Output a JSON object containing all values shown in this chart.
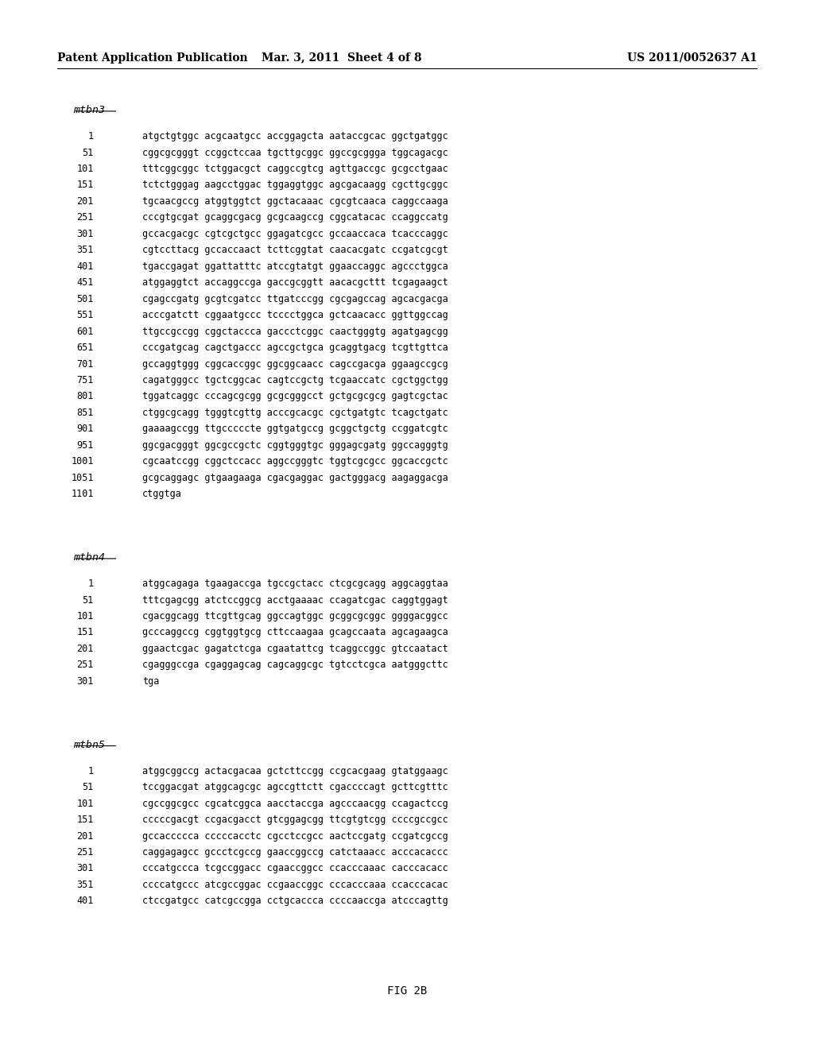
{
  "header_left": "Patent Application Publication",
  "header_mid": "Mar. 3, 2011  Sheet 4 of 8",
  "header_right": "US 2011/0052637 A1",
  "figure_label": "FIG 2B",
  "sections": [
    {
      "label": "mtbn3",
      "lines": [
        [
          "1",
          "atgctgtggc acgcaatgcc accggagcta aataccgcac ggctgatggc"
        ],
        [
          "51",
          "cggcgcgggt ccggctccaa tgcttgcggc ggccgcggga tggcagacgc"
        ],
        [
          "101",
          "tttcggcggc tctggacgct caggccgtcg agttgaccgc gcgcctgaac"
        ],
        [
          "151",
          "tctctgggag aagcctggac tggaggtggc agcgacaagg cgcttgcggc"
        ],
        [
          "201",
          "tgcaacgccg atggtggtct ggctacaaac cgcgtcaaca caggccaaga"
        ],
        [
          "251",
          "cccgtgcgat gcaggcgacg gcgcaagccg cggcatacac ccaggccatg"
        ],
        [
          "301",
          "gccacgacgc cgtcgctgcc ggagatcgcc gccaaccaca tcacccaggc"
        ],
        [
          "351",
          "cgtccttacg gccaccaact tcttcggtat caacacgatc ccgatcgcgt"
        ],
        [
          "401",
          "tgaccgagat ggattatttc atccgtatgt ggaaccaggc agccctggca"
        ],
        [
          "451",
          "atggaggtct accaggccga gaccgcggtt aacacgcttt tcgagaagct"
        ],
        [
          "501",
          "cgagccgatg gcgtcgatcc ttgatcccgg cgcgagccag agcacgacga"
        ],
        [
          "551",
          "acccgatctt cggaatgccc tcccctggca gctcaacacc ggttggccag"
        ],
        [
          "601",
          "ttgccgccgg cggctaccca gaccctcggc caactgggtg agatgagcgg"
        ],
        [
          "651",
          "cccgatgcag cagctgaccc agccgctgca gcaggtgacg tcgttgttca"
        ],
        [
          "701",
          "gccaggtggg cggcaccggc ggcggcaacc cagccgacga ggaagccgcg"
        ],
        [
          "751",
          "cagatgggcc tgctcggcac cagtccgctg tcgaaccatc cgctggctgg"
        ],
        [
          "801",
          "tggatcaggc cccagcgcgg gcgcgggcct gctgcgcgcg gagtcgctac"
        ],
        [
          "851",
          "ctggcgcagg tgggtcgttg acccgcacgc cgctgatgtc tcagctgatc"
        ],
        [
          "901",
          "gaaaagccgg ttgcccccte ggtgatgccg gcggctgctg ccggatcgtc"
        ],
        [
          "951",
          "ggcgacgggt ggcgccgctc cggtgggtgc gggagcgatg ggccagggtg"
        ],
        [
          "1001",
          "cgcaatccgg cggctccacc aggccgggtc tggtcgcgcc ggcaccgctc"
        ],
        [
          "1051",
          "gcgcaggagc gtgaagaaga cgacgaggac gactgggacg aagaggacga"
        ],
        [
          "1101",
          "ctggtga"
        ]
      ]
    },
    {
      "label": "mtbn4",
      "lines": [
        [
          "1",
          "atggcagaga tgaagaccga tgccgctacc ctcgcgcagg aggcaggtaa"
        ],
        [
          "51",
          "tttcgagcgg atctccggcg acctgaaaac ccagatcgac caggtggagt"
        ],
        [
          "101",
          "cgacggcagg ttcgttgcag ggccagtggc gcggcgcggc ggggacggcc"
        ],
        [
          "151",
          "gcccaggccg cggtggtgcg cttccaagaa gcagccaata agcagaagca"
        ],
        [
          "201",
          "ggaactcgac gagatctcga cgaatattcg tcaggccggc gtccaatact"
        ],
        [
          "251",
          "cgagggccga cgaggagcag cagcaggcgc tgtcctcgca aatgggcttc"
        ],
        [
          "301",
          "tga"
        ]
      ]
    },
    {
      "label": "mtbn5",
      "lines": [
        [
          "1",
          "atggcggccg actacgacaa gctcttccgg ccgcacgaag gtatggaagc"
        ],
        [
          "51",
          "tccggacgat atggcagcgc agccgttctt cgaccccagt gcttcgtttc"
        ],
        [
          "101",
          "cgccggcgcc cgcatcggca aacctaccga agcccaacgg ccagactccg"
        ],
        [
          "151",
          "cccccgacgt ccgacgacct gtcggagcgg ttcgtgtcgg ccccgccgcc"
        ],
        [
          "201",
          "gccaccccca cccccacctc cgcctccgcc aactccgatg ccgatcgccg"
        ],
        [
          "251",
          "caggagagcc gccctcgccg gaaccggccg catctaaacc acccacaccc"
        ],
        [
          "301",
          "cccatgccca tcgccggacc cgaaccggcc ccacccaaac cacccacacc"
        ],
        [
          "351",
          "ccccatgccc atcgccggac ccgaaccggc cccacccaaa ccacccacac"
        ],
        [
          "401",
          "ctccgatgcc catcgccgga cctgcaccca ccccaaccga atcccagttg"
        ]
      ]
    }
  ]
}
